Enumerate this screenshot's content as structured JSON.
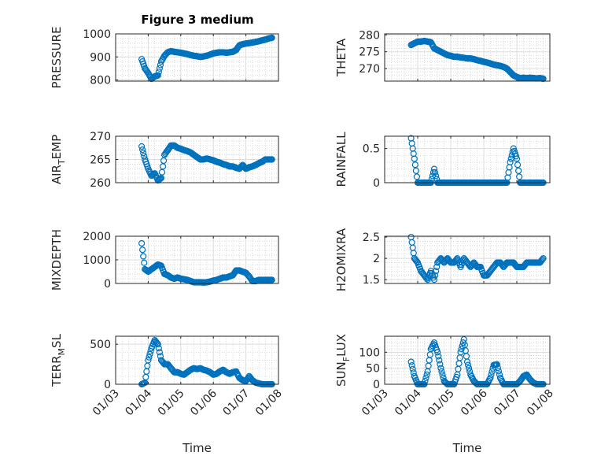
{
  "chart_data": {
    "type": "scatter",
    "title": "Figure 3 medium",
    "xlabel": "Time",
    "x_tick_labels": [
      "01/03",
      "01/04",
      "01/05",
      "01/06",
      "01/07",
      "01/08"
    ],
    "x_ticks": [
      3,
      4,
      5,
      6,
      7,
      8
    ],
    "xlim": [
      3,
      8
    ],
    "x_unit": "day of January",
    "marker": "open circle",
    "color": "#0072BD",
    "x": [
      3.8,
      3.9,
      4.0,
      4.1,
      4.2,
      4.3,
      4.4,
      4.5,
      4.6,
      4.7,
      4.8,
      4.9,
      5.0,
      5.1,
      5.2,
      5.3,
      5.4,
      5.5,
      5.6,
      5.7,
      5.8,
      5.9,
      6.0,
      6.1,
      6.2,
      6.3,
      6.4,
      6.5,
      6.6,
      6.7,
      6.8,
      6.9,
      7.0,
      7.1,
      7.2,
      7.3,
      7.4,
      7.5,
      7.6,
      7.7,
      7.8
    ],
    "panels": [
      {
        "ylabel": "PRESSURE",
        "ylim": [
          795,
          1000
        ],
        "yticks": [
          800,
          900,
          1000
        ],
        "yticklabels": [
          "800",
          "900",
          "1000"
        ],
        "values": [
          890,
          850,
          830,
          805,
          815,
          820,
          880,
          905,
          920,
          925,
          922,
          920,
          918,
          915,
          912,
          908,
          905,
          903,
          900,
          902,
          905,
          910,
          915,
          918,
          920,
          920,
          918,
          920,
          922,
          930,
          950,
          955,
          958,
          960,
          962,
          965,
          968,
          972,
          975,
          980,
          983
        ]
      },
      {
        "ylabel": "THETA",
        "ylim": [
          266.3,
          280.3
        ],
        "yticks": [
          270,
          275,
          280
        ],
        "yticklabels": [
          "270",
          "275",
          "280"
        ],
        "values": [
          277,
          277.5,
          278,
          278,
          278.2,
          278,
          277.8,
          276,
          275.5,
          275,
          274.5,
          274,
          273.8,
          273.5,
          273.5,
          273.3,
          273.2,
          273,
          273,
          272.8,
          272.5,
          272.3,
          272,
          271.8,
          271.5,
          271.2,
          271,
          270.8,
          270.5,
          270,
          269,
          268,
          267.5,
          267.2,
          267.3,
          267.2,
          267.3,
          267.2,
          267.1,
          267.2,
          267
        ]
      },
      {
        "ylabel": "AIR_TEMP",
        "ylim": [
          260,
          270
        ],
        "yticks": [
          260,
          265,
          270
        ],
        "yticklabels": [
          "260",
          "265",
          "270"
        ],
        "values": [
          267.8,
          265,
          263,
          261.5,
          262,
          260.5,
          261,
          266,
          267,
          268,
          268,
          267.5,
          267.3,
          267,
          266.8,
          266.5,
          266,
          265.5,
          265,
          265,
          265.2,
          265,
          264.8,
          264.5,
          264.3,
          264,
          263.8,
          263.5,
          263.5,
          263.2,
          263,
          263.8,
          263,
          263.3,
          263.5,
          263.8,
          264.2,
          264.5,
          265,
          265,
          265
        ]
      },
      {
        "ylabel": "RAINFALL",
        "ylim": [
          0,
          0.68
        ],
        "yticks": [
          0,
          0.5
        ],
        "yticklabels": [
          "0",
          "0.5"
        ],
        "values": [
          0.65,
          0.35,
          0,
          0,
          0,
          0,
          0,
          0.2,
          0,
          0,
          0,
          0,
          0,
          0,
          0,
          0,
          0,
          0,
          0,
          0,
          0,
          0,
          0,
          0,
          0,
          0,
          0,
          0,
          0,
          0,
          0.3,
          0.5,
          0.35,
          0,
          0,
          0,
          0,
          0,
          0,
          0,
          0
        ]
      },
      {
        "ylabel": "MIXDEPTH",
        "ylim": [
          0,
          2000
        ],
        "yticks": [
          0,
          1000,
          2000
        ],
        "yticklabels": [
          "0",
          "1000",
          "2000"
        ],
        "values": [
          1700,
          600,
          500,
          600,
          700,
          800,
          750,
          400,
          350,
          250,
          200,
          250,
          200,
          180,
          150,
          100,
          50,
          50,
          50,
          40,
          50,
          80,
          120,
          150,
          200,
          250,
          250,
          300,
          350,
          550,
          550,
          500,
          450,
          300,
          100,
          100,
          150,
          150,
          150,
          150,
          150
        ]
      },
      {
        "ylabel": "H2OMIXRA",
        "ylim": [
          1.41,
          2.52
        ],
        "yticks": [
          1.5,
          2,
          2.5
        ],
        "yticklabels": [
          "1.5",
          "2",
          "2.5"
        ],
        "values": [
          2.5,
          2.0,
          1.9,
          1.7,
          1.6,
          1.5,
          1.7,
          1.5,
          1.9,
          2.0,
          1.9,
          2.0,
          1.9,
          1.9,
          2.0,
          1.8,
          2.0,
          1.9,
          1.8,
          1.9,
          1.8,
          1.8,
          1.6,
          1.6,
          1.7,
          1.8,
          1.9,
          1.9,
          1.8,
          1.9,
          1.9,
          1.9,
          1.8,
          1.8,
          1.8,
          1.9,
          1.9,
          1.9,
          1.9,
          1.9,
          2.0
        ]
      },
      {
        "ylabel": "TERR_MSL",
        "ylim": [
          0,
          600
        ],
        "yticks": [
          0,
          500
        ],
        "yticklabels": [
          "0",
          "500"
        ],
        "values": [
          0,
          20,
          300,
          450,
          550,
          500,
          300,
          250,
          250,
          200,
          150,
          150,
          130,
          120,
          150,
          180,
          200,
          190,
          200,
          180,
          170,
          150,
          120,
          130,
          160,
          180,
          150,
          130,
          150,
          160,
          80,
          50,
          40,
          100,
          50,
          20,
          10,
          0,
          0,
          0,
          0
        ]
      },
      {
        "ylabel": "SUN_FLUX",
        "ylim": [
          0,
          150
        ],
        "yticks": [
          0,
          50,
          100
        ],
        "yticklabels": [
          "0",
          "50",
          "100"
        ],
        "values": [
          70,
          25,
          0,
          0,
          0,
          40,
          110,
          130,
          100,
          50,
          10,
          0,
          0,
          0,
          30,
          100,
          140,
          70,
          30,
          10,
          0,
          0,
          0,
          0,
          20,
          60,
          62,
          20,
          0,
          0,
          0,
          0,
          0,
          10,
          25,
          30,
          15,
          5,
          0,
          0,
          0
        ]
      }
    ]
  }
}
